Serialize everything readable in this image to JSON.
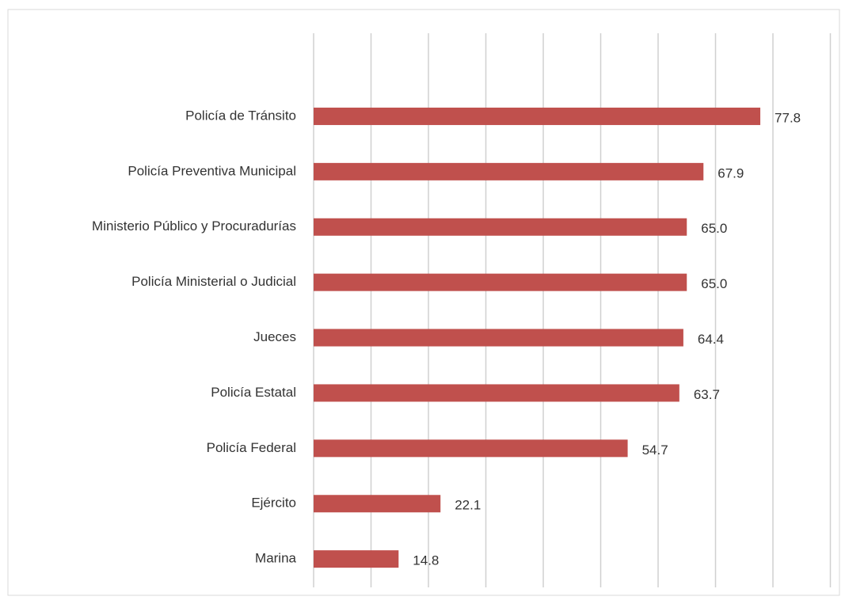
{
  "chart_data": {
    "type": "bar",
    "orientation": "horizontal",
    "categories": [
      "Policía de Tránsito",
      "Policía Preventiva Municipal",
      "Ministerio Público y Procuradurías",
      "Policía Ministerial o Judicial",
      "Jueces",
      "Policía Estatal",
      "Policía Federal",
      "Ejército",
      "Marina"
    ],
    "values": [
      77.8,
      67.9,
      65.0,
      65.0,
      64.4,
      63.7,
      54.7,
      22.1,
      14.8
    ],
    "value_labels": [
      "77.8",
      "67.9",
      "65.0",
      "65.0",
      "64.4",
      "63.7",
      "54.7",
      "22.1",
      "14.8"
    ],
    "color": "#c0504d",
    "xlim": [
      0,
      90
    ],
    "xticks": [
      0,
      10,
      20,
      30,
      40,
      50,
      60,
      70,
      80,
      90
    ],
    "grid": true
  }
}
